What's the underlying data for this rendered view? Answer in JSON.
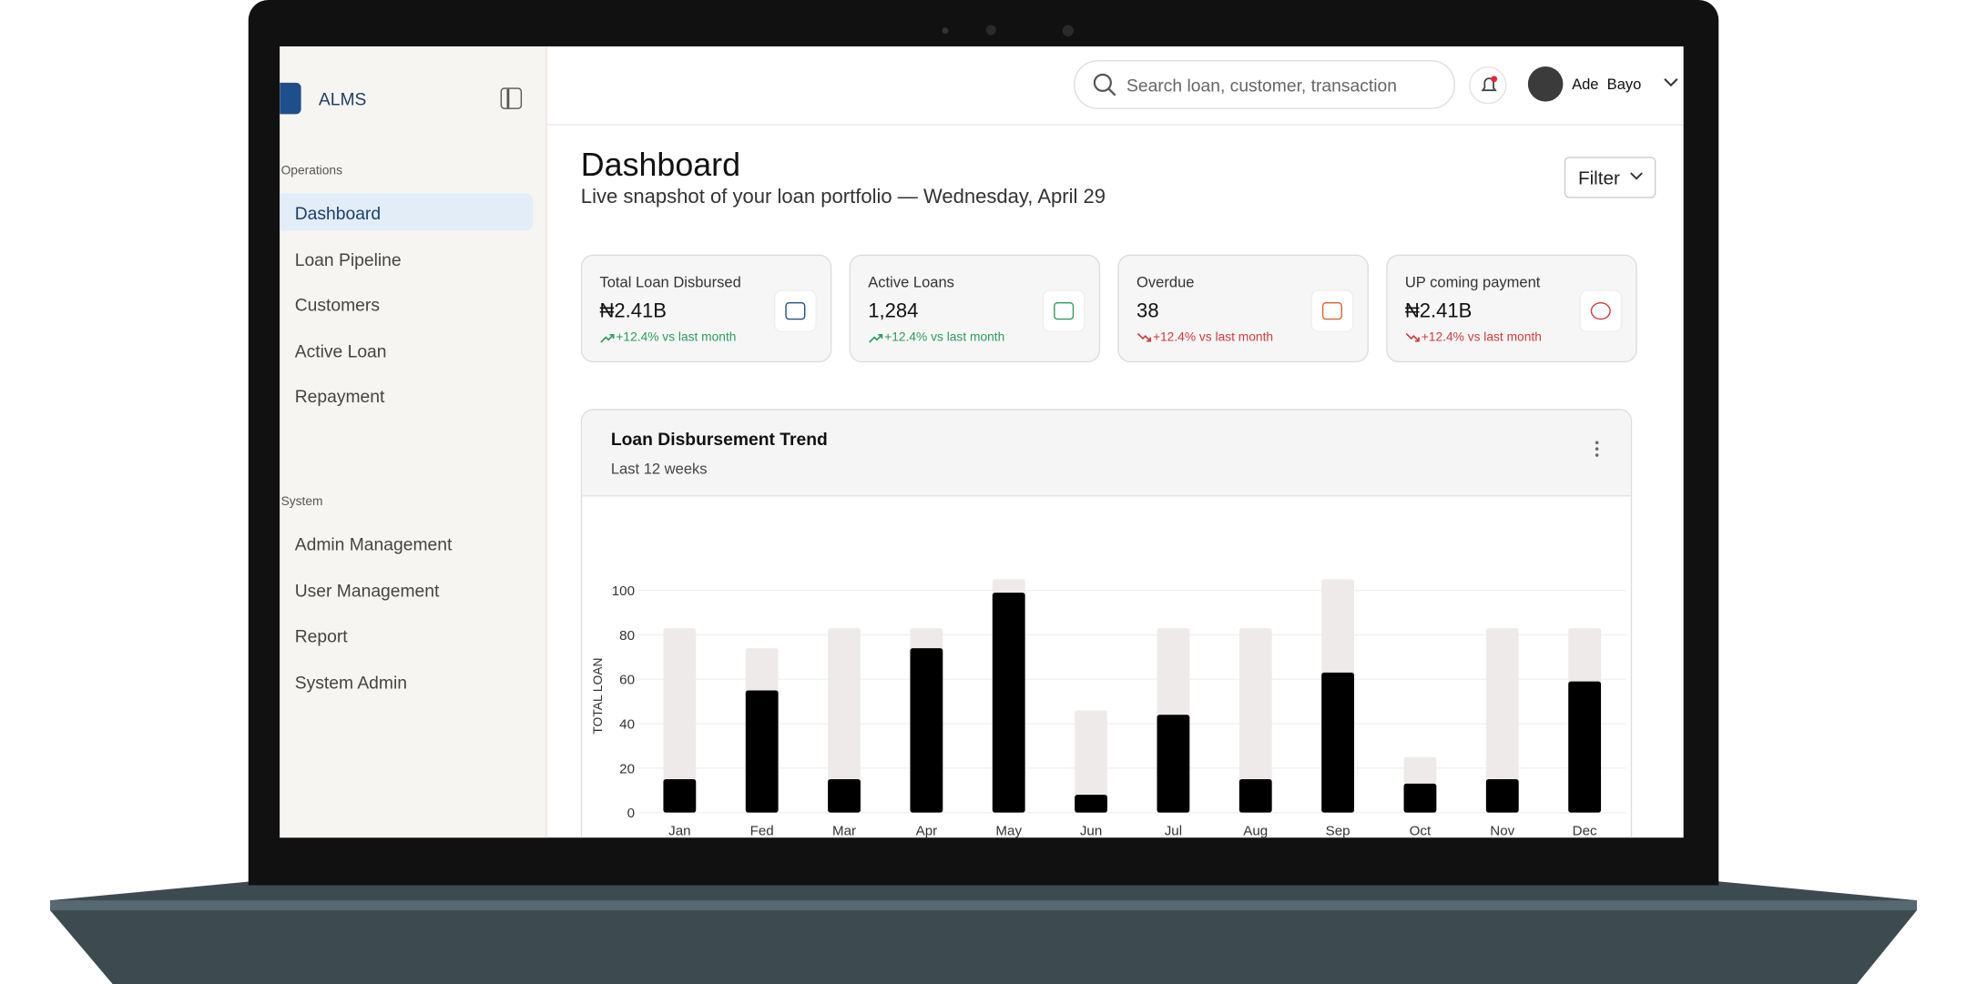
{
  "sidebar": {
    "brand": "ALMS",
    "sections": [
      {
        "title": "Operations",
        "items": [
          "Dashboard",
          "Loan Pipeline",
          "Customers",
          "Active Loan",
          "Repayment"
        ]
      },
      {
        "title": "System",
        "items": [
          "Admin Management",
          "User Management",
          "Report",
          "System Admin"
        ]
      }
    ]
  },
  "header": {
    "search_placeholder": "Search loan, customer, transaction",
    "user": "Ade  Bayo"
  },
  "page": {
    "title": "Dashboard",
    "subtitle": "Live snapshot of your loan portfolio — Wednesday, April 29",
    "filter": "Filter"
  },
  "cards": [
    {
      "label": "Total Loan Disbursed",
      "value": "₦2.41B",
      "change": "+12.4% vs last month",
      "trend": "up",
      "color": "#2a9d5c"
    },
    {
      "label": "Active Loans",
      "value": "1,284",
      "change": "+12.4% vs last month",
      "trend": "up",
      "color": "#2a9d5c"
    },
    {
      "label": "Overdue",
      "value": "38",
      "change": "+12.4% vs last month",
      "trend": "down",
      "color": "#d23b3b"
    },
    {
      "label": "UP coming payment",
      "value": "₦2.41B",
      "change": "+12.4% vs last month",
      "trend": "down",
      "color": "#d23b3b"
    }
  ],
  "chart_data": {
    "type": "bar",
    "title": "Loan Disbursement Trend",
    "subtitle": "Last 12 weeks",
    "y_label": "TOTAL LOAN",
    "categories": [
      "Jan",
      "Fed",
      "Mar",
      "Apr",
      "May",
      "Jun",
      "Jul",
      "Aug",
      "Sep",
      "Oct",
      "Nov",
      "Dec"
    ],
    "series": [
      {
        "color": "#efeaea",
        "values": [
          83,
          74,
          83,
          83,
          105,
          46,
          83,
          83,
          105,
          25,
          83,
          83
        ]
      },
      {
        "color": "#000000",
        "values": [
          15,
          55,
          15,
          74,
          99,
          8,
          44,
          15,
          63,
          13,
          15,
          59
        ]
      }
    ],
    "ylim": [
      0,
      105
    ],
    "yticks": [
      0,
      20,
      40,
      60,
      80,
      100
    ],
    "grid": true
  }
}
